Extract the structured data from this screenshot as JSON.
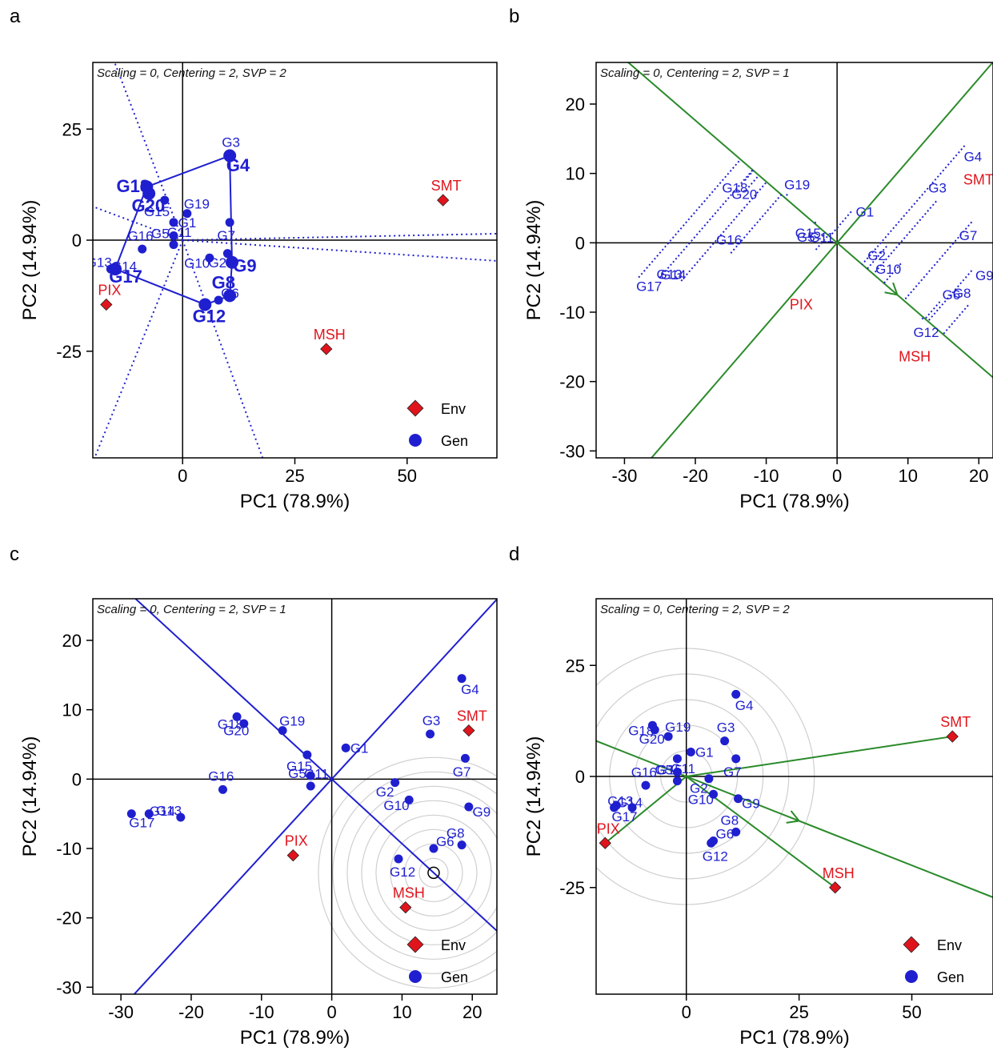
{
  "colors": {
    "gen": "#1f1fd0",
    "env": "#e0141c",
    "green": "#2a8a2a",
    "axis": "#000000",
    "circle": "#cfcfcf"
  },
  "legend": {
    "env": "Env",
    "gen": "Gen"
  },
  "chart_data": [
    {
      "panel_label": "a",
      "type": "scatter",
      "biplot": "which-won-where",
      "subtitle": "Scaling = 0, Centering = 2, SVP = 2",
      "xlabel": "PC1 (78.9%)",
      "ylabel": "PC2 (14.94%)",
      "xlim": [
        -20,
        70
      ],
      "ylim": [
        -49,
        40
      ],
      "xticks": [
        0,
        25,
        50
      ],
      "yticks": [
        -25,
        0,
        25
      ],
      "genotypes": [
        {
          "name": "G1",
          "x": -2,
          "y": 4
        },
        {
          "name": "G2",
          "x": 10,
          "y": -3
        },
        {
          "name": "G3",
          "x": 10.5,
          "y": 19
        },
        {
          "name": "G4",
          "x": 10.5,
          "y": 19
        },
        {
          "name": "G5",
          "x": -2,
          "y": 1
        },
        {
          "name": "G6",
          "x": 8,
          "y": -13.5
        },
        {
          "name": "G7",
          "x": 10.5,
          "y": 4
        },
        {
          "name": "G8",
          "x": 10.5,
          "y": -12.5
        },
        {
          "name": "G9",
          "x": 11,
          "y": -5
        },
        {
          "name": "G10",
          "x": 6,
          "y": -4
        },
        {
          "name": "G11",
          "x": -2,
          "y": -1
        },
        {
          "name": "G12",
          "x": 5,
          "y": -14.5
        },
        {
          "name": "G13",
          "x": -16,
          "y": -6.5
        },
        {
          "name": "G14",
          "x": -16,
          "y": -6.5
        },
        {
          "name": "G15",
          "x": -4,
          "y": 9
        },
        {
          "name": "G16",
          "x": -9,
          "y": -2
        },
        {
          "name": "G17",
          "x": -15,
          "y": -6.5
        },
        {
          "name": "G18",
          "x": -8,
          "y": 12
        },
        {
          "name": "G19",
          "x": 1,
          "y": 6
        },
        {
          "name": "G20",
          "x": -7.5,
          "y": 10.5
        }
      ],
      "hull_vertices": [
        "G4",
        "G9",
        "G8",
        "G12",
        "G17",
        "G18"
      ],
      "environments": [
        {
          "name": "SMT",
          "x": 58,
          "y": 9
        },
        {
          "name": "MSH",
          "x": 32,
          "y": -24.5
        },
        {
          "name": "PIX",
          "x": -17,
          "y": -14.5
        }
      ]
    },
    {
      "panel_label": "b",
      "type": "scatter",
      "biplot": "mean-vs-stability",
      "subtitle": "Scaling = 0, Centering = 2, SVP = 1",
      "xlabel": "PC1 (78.9%)",
      "ylabel": "PC2 (14.94%)",
      "xlim": [
        -34,
        22
      ],
      "ylim": [
        -31,
        26
      ],
      "xticks": [
        -30,
        -20,
        -10,
        0,
        10,
        20
      ],
      "yticks": [
        -30,
        -20,
        -10,
        0,
        10,
        20
      ],
      "genotypes": [
        {
          "name": "G1",
          "x": 2,
          "y": 4.5
        },
        {
          "name": "G2",
          "x": 7,
          "y": -0.5
        },
        {
          "name": "G3",
          "x": 14,
          "y": 6
        },
        {
          "name": "G4",
          "x": 18,
          "y": 14
        },
        {
          "name": "G5",
          "x": -2.5,
          "y": 0.5
        },
        {
          "name": "G6",
          "x": 14.5,
          "y": -8.5
        },
        {
          "name": "G7",
          "x": 19,
          "y": 3
        },
        {
          "name": "G8",
          "x": 18.5,
          "y": -9
        },
        {
          "name": "G9",
          "x": 19,
          "y": -4
        },
        {
          "name": "G10",
          "x": 9,
          "y": -3
        },
        {
          "name": "G11",
          "x": -3,
          "y": -1
        },
        {
          "name": "G12",
          "x": 12,
          "y": -11
        },
        {
          "name": "G13",
          "x": -22,
          "y": -5.5
        },
        {
          "name": "G14",
          "x": -25,
          "y": -5
        },
        {
          "name": "G15",
          "x": -3,
          "y": 3
        },
        {
          "name": "G16",
          "x": -15,
          "y": -1.5
        },
        {
          "name": "G17",
          "x": -28,
          "y": -5
        },
        {
          "name": "G18",
          "x": -12.5,
          "y": 8
        },
        {
          "name": "G19",
          "x": -7,
          "y": 7
        },
        {
          "name": "G20",
          "x": -13,
          "y": 9
        }
      ],
      "environments": [
        {
          "name": "SMT",
          "x": 19.5,
          "y": 7
        },
        {
          "name": "MSH",
          "x": 10.5,
          "y": -18.5
        },
        {
          "name": "PIX",
          "x": -5.5,
          "y": -11
        }
      ],
      "aec_arrow": {
        "x": 8.5,
        "y": -7.5
      }
    },
    {
      "panel_label": "c",
      "type": "scatter",
      "biplot": "ranking-genotypes",
      "subtitle": "Scaling = 0, Centering = 2, SVP = 1",
      "xlabel": "PC1 (78.9%)",
      "ylabel": "PC2 (14.94%)",
      "xlim": [
        -34,
        23.5
      ],
      "ylim": [
        -31,
        26
      ],
      "xticks": [
        -30,
        -20,
        -10,
        0,
        10,
        20
      ],
      "yticks": [
        -30,
        -20,
        -10,
        0,
        10,
        20
      ],
      "genotypes": [
        {
          "name": "G1",
          "x": 2,
          "y": 4.5
        },
        {
          "name": "G2",
          "x": 9,
          "y": -0.5
        },
        {
          "name": "G3",
          "x": 14,
          "y": 6.5
        },
        {
          "name": "G4",
          "x": 18.5,
          "y": 14.5
        },
        {
          "name": "G5",
          "x": -3,
          "y": 0.5
        },
        {
          "name": "G6",
          "x": 14.5,
          "y": -10
        },
        {
          "name": "G7",
          "x": 19,
          "y": 3
        },
        {
          "name": "G8",
          "x": 18.5,
          "y": -9.5
        },
        {
          "name": "G9",
          "x": 19.5,
          "y": -4
        },
        {
          "name": "G10",
          "x": 11,
          "y": -3
        },
        {
          "name": "G11",
          "x": -3,
          "y": -1
        },
        {
          "name": "G12",
          "x": 9.5,
          "y": -11.5
        },
        {
          "name": "G13",
          "x": -21.5,
          "y": -5.5
        },
        {
          "name": "G14",
          "x": -26,
          "y": -5
        },
        {
          "name": "G15",
          "x": -3.5,
          "y": 3.5
        },
        {
          "name": "G16",
          "x": -15.5,
          "y": -1.5
        },
        {
          "name": "G17",
          "x": -28.5,
          "y": -5
        },
        {
          "name": "G18",
          "x": -12.5,
          "y": 8
        },
        {
          "name": "G19",
          "x": -7,
          "y": 7
        },
        {
          "name": "G20",
          "x": -13.5,
          "y": 9
        }
      ],
      "environments": [
        {
          "name": "SMT",
          "x": 19.5,
          "y": 7
        },
        {
          "name": "MSH",
          "x": 10.5,
          "y": -18.5
        },
        {
          "name": "PIX",
          "x": -5.5,
          "y": -11
        }
      ],
      "ideal_point": {
        "x": 14.5,
        "y": -13.5
      }
    },
    {
      "panel_label": "d",
      "type": "scatter",
      "biplot": "ranking-environments",
      "subtitle": "Scaling = 0, Centering = 2, SVP = 2",
      "xlabel": "PC1 (78.9%)",
      "ylabel": "PC2 (14.94%)",
      "xlim": [
        -20,
        68
      ],
      "ylim": [
        -49,
        40
      ],
      "xticks": [
        0,
        25,
        50
      ],
      "yticks": [
        -25,
        0,
        25
      ],
      "genotypes": [
        {
          "name": "G1",
          "x": 1,
          "y": 5.5
        },
        {
          "name": "G2",
          "x": 5,
          "y": -0.5
        },
        {
          "name": "G3",
          "x": 8.5,
          "y": 8
        },
        {
          "name": "G4",
          "x": 11,
          "y": 18.5
        },
        {
          "name": "G5",
          "x": -2,
          "y": 1
        },
        {
          "name": "G6",
          "x": 6,
          "y": -14.5
        },
        {
          "name": "G7",
          "x": 11,
          "y": 4
        },
        {
          "name": "G8",
          "x": 11,
          "y": -12.5
        },
        {
          "name": "G9",
          "x": 11.5,
          "y": -5
        },
        {
          "name": "G10",
          "x": 6,
          "y": -4
        },
        {
          "name": "G11",
          "x": -2,
          "y": -1
        },
        {
          "name": "G12",
          "x": 5.5,
          "y": -15
        },
        {
          "name": "G13",
          "x": -12,
          "y": -7
        },
        {
          "name": "G14",
          "x": -15.5,
          "y": -6.5
        },
        {
          "name": "G15",
          "x": -2,
          "y": 4
        },
        {
          "name": "G16",
          "x": -9,
          "y": -2
        },
        {
          "name": "G17",
          "x": -16,
          "y": -7
        },
        {
          "name": "G18",
          "x": -7,
          "y": 10.5
        },
        {
          "name": "G19",
          "x": -4,
          "y": 9
        },
        {
          "name": "G20",
          "x": -7.5,
          "y": 11.5
        }
      ],
      "environments": [
        {
          "name": "SMT",
          "x": 59,
          "y": 9
        },
        {
          "name": "MSH",
          "x": 33,
          "y": -25
        },
        {
          "name": "PIX",
          "x": -18,
          "y": -15
        }
      ],
      "aec_arrow": {
        "x": 25,
        "y": -10
      }
    }
  ]
}
